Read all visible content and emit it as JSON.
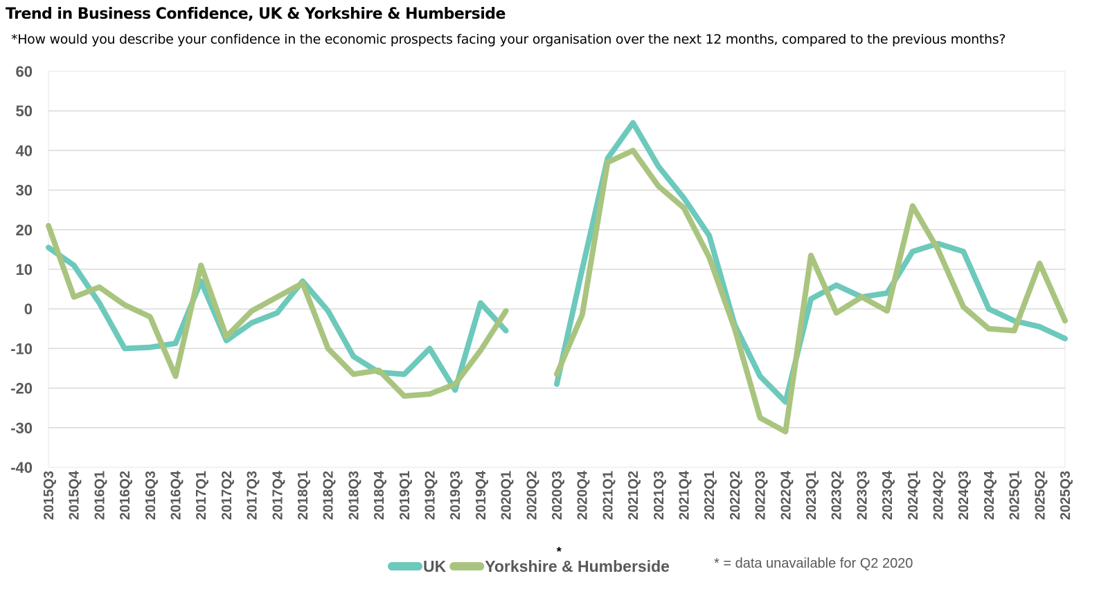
{
  "chart_data": {
    "type": "line",
    "title": "Trend in Business Confidence, UK & Yorkshire & Humberside",
    "subtitle": "*How would you describe your confidence in the economic prospects facing your organisation over the next 12 months, compared to the previous months?",
    "xlabel": "",
    "ylabel": "",
    "ylim": [
      -40,
      60
    ],
    "yticks": [
      60,
      50,
      40,
      30,
      20,
      10,
      0,
      -10,
      -20,
      -30,
      -40
    ],
    "grid": true,
    "legend_position": "bottom",
    "categories": [
      "2015Q3",
      "2015Q4",
      "2016Q1",
      "2016Q2",
      "2016Q3",
      "2016Q4",
      "2017Q1",
      "2017Q2",
      "2017Q3",
      "2017Q4",
      "2018Q1",
      "2018Q2",
      "2018Q3",
      "2018Q4",
      "2019Q1",
      "2019Q2",
      "2019Q3",
      "2019Q4",
      "2020Q1",
      "2020Q2",
      "2020Q3",
      "2020Q4",
      "2021Q1",
      "2021Q2",
      "2021Q3",
      "2021Q4",
      "2022Q1",
      "2022Q2",
      "2022Q3",
      "2022Q4",
      "2023Q1",
      "2023Q2",
      "2023Q3",
      "2023Q4",
      "2024Q1",
      "2024Q2",
      "2024Q3",
      "2024Q4",
      "2025Q1",
      "2025Q2",
      "2025Q3"
    ],
    "marked_category": "2020Q2",
    "marker_symbol": "*",
    "series": [
      {
        "name": "UK",
        "color": "#6CC9BB",
        "values": [
          15.5,
          11,
          1.5,
          -10,
          -9.7,
          -8.7,
          7,
          -8,
          -3.5,
          -1,
          7,
          -0.5,
          -12,
          -16,
          -16.5,
          -10,
          -20.5,
          1.5,
          -5.5,
          null,
          -19,
          10,
          38,
          47,
          36,
          28,
          18.5,
          -4,
          -17,
          -23.5,
          2.5,
          6,
          3,
          4,
          14.5,
          16.5,
          14.5,
          0,
          -3,
          -4.5,
          -7.5
        ]
      },
      {
        "name": "Yorkshire & Humberside",
        "color": "#A9C47F",
        "values": [
          21,
          3,
          5.5,
          1,
          -2,
          -17,
          11,
          -7,
          -0.5,
          3,
          6.5,
          -10,
          -16.5,
          -15.5,
          -22,
          -21.5,
          -19,
          -10.5,
          -0.5,
          null,
          -16.5,
          -1.5,
          37,
          40,
          31,
          25.5,
          13,
          -5,
          -27.5,
          -31,
          13.5,
          -1,
          3,
          -0.5,
          26,
          15,
          0.5,
          -5,
          -5.5,
          11.5,
          -3
        ]
      }
    ],
    "note": "* = data unavailable for Q2 2020"
  }
}
